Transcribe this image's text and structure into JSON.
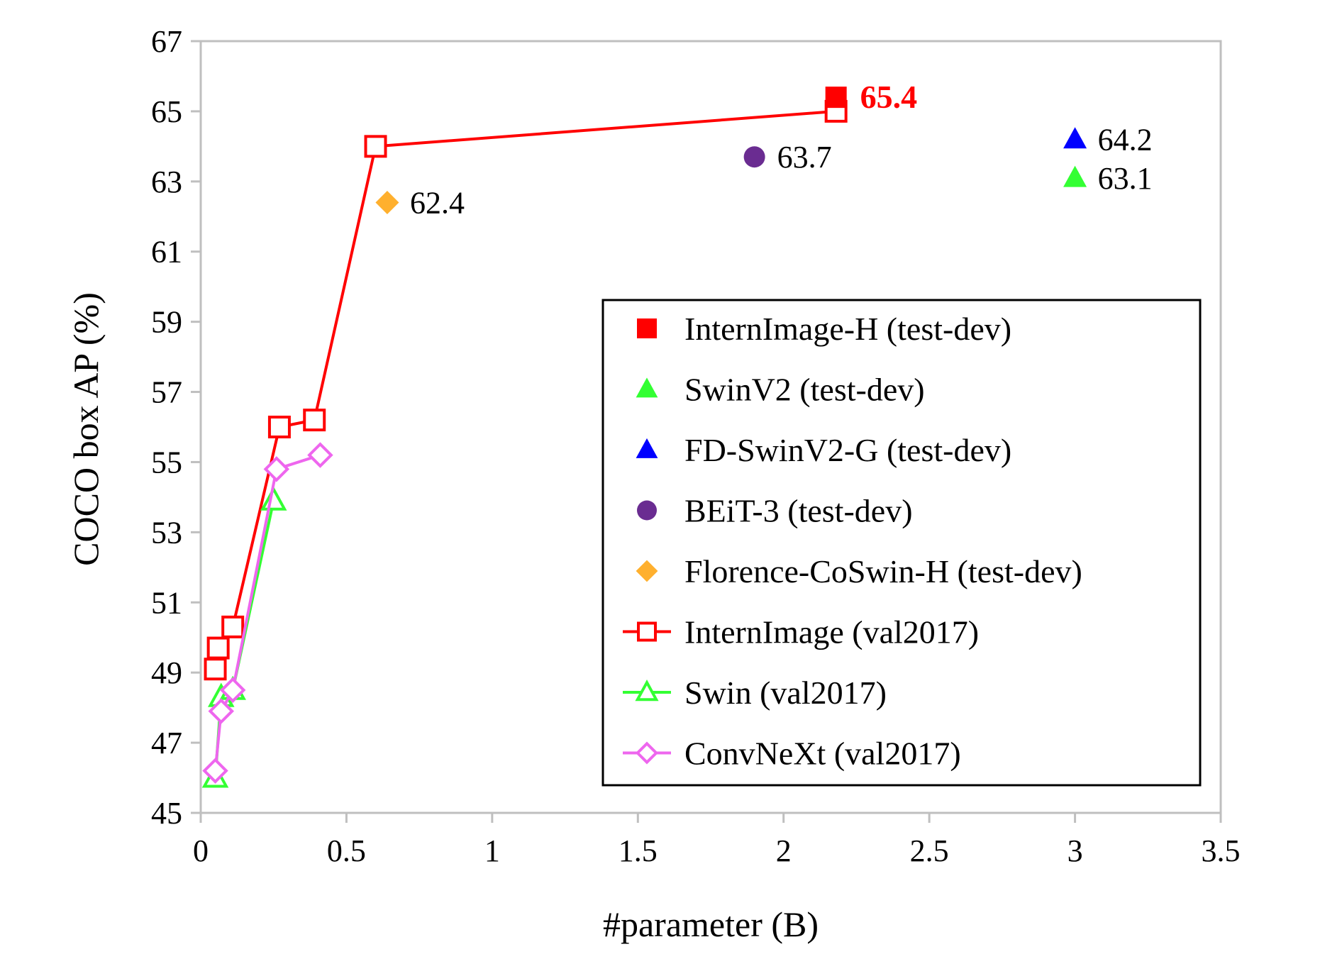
{
  "chart_data": {
    "type": "scatter",
    "xlabel": "#parameter (B)",
    "ylabel": "COCO box AP (%)",
    "xlim": [
      0,
      3.5
    ],
    "ylim": [
      45,
      67
    ],
    "x_ticks": [
      0,
      0.5,
      1,
      1.5,
      2,
      2.5,
      3,
      3.5
    ],
    "x_tick_labels": [
      "0",
      "0.5",
      "1",
      "1.5",
      "2",
      "2.5",
      "3",
      "3.5"
    ],
    "y_ticks": [
      45,
      47,
      49,
      51,
      53,
      55,
      57,
      59,
      61,
      63,
      65,
      67
    ],
    "y_tick_labels": [
      "45",
      "47",
      "49",
      "51",
      "53",
      "55",
      "57",
      "59",
      "61",
      "63",
      "65",
      "67"
    ],
    "grid": false,
    "legend_position": "center-right",
    "series": [
      {
        "name": "InternImage-H (test-dev)",
        "marker": "square-filled",
        "color": "#ff0000",
        "line": false,
        "points": [
          {
            "x": 2.18,
            "y": 65.4,
            "label": "65.4"
          }
        ]
      },
      {
        "name": "SwinV2 (test-dev)",
        "marker": "triangle-filled",
        "color": "#33ff33",
        "line": false,
        "points": [
          {
            "x": 3.0,
            "y": 63.1,
            "label": "63.1"
          }
        ]
      },
      {
        "name": "FD-SwinV2-G (test-dev)",
        "marker": "triangle-filled",
        "color": "#0000ff",
        "line": false,
        "points": [
          {
            "x": 3.0,
            "y": 64.2,
            "label": "64.2"
          }
        ]
      },
      {
        "name": "BEiT-3 (test-dev)",
        "marker": "circle-filled",
        "color": "#6a2c91",
        "line": false,
        "points": [
          {
            "x": 1.9,
            "y": 63.7,
            "label": "63.7"
          }
        ]
      },
      {
        "name": "Florence-CoSwin-H (test-dev)",
        "marker": "diamond-filled",
        "color": "#ffb02e",
        "line": false,
        "points": [
          {
            "x": 0.64,
            "y": 62.4,
            "label": "62.4"
          }
        ]
      },
      {
        "name": "InternImage (val2017)",
        "marker": "square-open",
        "color": "#ff0000",
        "line": true,
        "points": [
          {
            "x": 0.05,
            "y": 49.1
          },
          {
            "x": 0.06,
            "y": 49.7
          },
          {
            "x": 0.11,
            "y": 50.3
          },
          {
            "x": 0.27,
            "y": 56.0
          },
          {
            "x": 0.39,
            "y": 56.2
          },
          {
            "x": 0.6,
            "y": 64.0
          },
          {
            "x": 2.18,
            "y": 65.0
          }
        ]
      },
      {
        "name": "Swin (val2017)",
        "marker": "triangle-open",
        "color": "#33ff33",
        "line": true,
        "points": [
          {
            "x": 0.05,
            "y": 46.0
          },
          {
            "x": 0.07,
            "y": 48.3
          },
          {
            "x": 0.11,
            "y": 48.5
          },
          {
            "x": 0.25,
            "y": 53.9
          }
        ]
      },
      {
        "name": "ConvNeXt (val2017)",
        "marker": "diamond-open",
        "color": "#ee66ee",
        "line": true,
        "points": [
          {
            "x": 0.05,
            "y": 46.2
          },
          {
            "x": 0.07,
            "y": 47.9
          },
          {
            "x": 0.11,
            "y": 48.5
          },
          {
            "x": 0.26,
            "y": 54.8
          },
          {
            "x": 0.41,
            "y": 55.2
          }
        ]
      }
    ]
  }
}
